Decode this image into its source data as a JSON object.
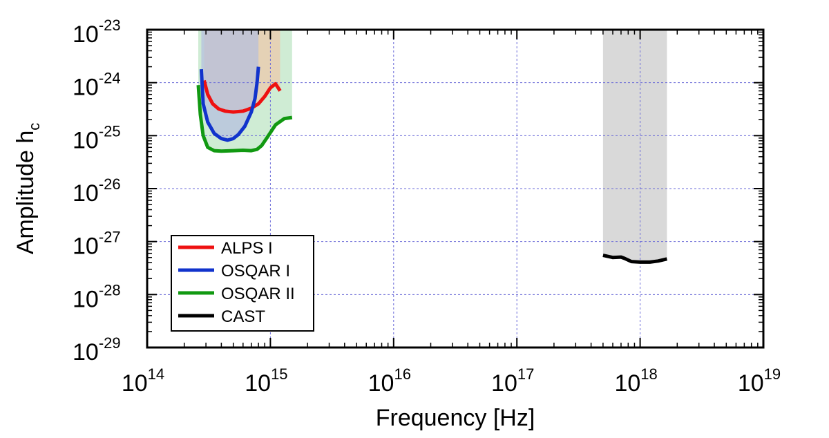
{
  "chart_data": {
    "type": "line",
    "xlabel": "Frequency [Hz]",
    "ylabel_main": "Amplitude h",
    "ylabel_sub": "c",
    "x_scale": "log",
    "y_scale": "log",
    "xlim": [
      100000000000000.0,
      1e+19
    ],
    "ylim": [
      1e-29,
      1e-23
    ],
    "grid": true,
    "legend_position": "bottom-left",
    "x_ticks": [
      {
        "base": "10",
        "exp": "14",
        "value": 100000000000000.0
      },
      {
        "base": "10",
        "exp": "15",
        "value": 1000000000000000.0
      },
      {
        "base": "10",
        "exp": "16",
        "value": 1e+16
      },
      {
        "base": "10",
        "exp": "17",
        "value": 1e+17
      },
      {
        "base": "10",
        "exp": "18",
        "value": 1e+18
      },
      {
        "base": "10",
        "exp": "19",
        "value": 1e+19
      }
    ],
    "y_ticks": [
      {
        "base": "10",
        "exp": "-23",
        "value": 1e-23
      },
      {
        "base": "10",
        "exp": "-24",
        "value": 1e-24
      },
      {
        "base": "10",
        "exp": "-25",
        "value": 1e-25
      },
      {
        "base": "10",
        "exp": "-26",
        "value": 1e-26
      },
      {
        "base": "10",
        "exp": "-27",
        "value": 1e-27
      },
      {
        "base": "10",
        "exp": "-28",
        "value": 1e-28
      },
      {
        "base": "10",
        "exp": "-29",
        "value": 1e-29
      }
    ],
    "series": [
      {
        "name": "ALPS I",
        "color": "#ee1111",
        "x": [
          290000000000000.0,
          310000000000000.0,
          340000000000000.0,
          380000000000000.0,
          430000000000000.0,
          500000000000000.0,
          600000000000000.0,
          700000000000000.0,
          800000000000000.0,
          900000000000000.0,
          1000000000000000.0,
          1100000000000000.0,
          1200000000000000.0
        ],
        "y": [
          1.1e-24,
          6e-25,
          4e-25,
          3.2e-25,
          2.9e-25,
          2.8e-25,
          2.9e-25,
          3.3e-25,
          4e-25,
          5.5e-25,
          8e-25,
          9.5e-25,
          7e-25
        ]
      },
      {
        "name": "OSQAR I",
        "color": "#1133cc",
        "x": [
          275000000000000.0,
          285000000000000.0,
          310000000000000.0,
          350000000000000.0,
          400000000000000.0,
          450000000000000.0,
          500000000000000.0,
          550000000000000.0,
          620000000000000.0,
          700000000000000.0,
          750000000000000.0,
          780000000000000.0,
          800000000000000.0
        ],
        "y": [
          1.8e-24,
          4e-25,
          1.8e-25,
          1.1e-25,
          8.8e-26,
          8.2e-26,
          8.8e-26,
          1.05e-25,
          1.5e-25,
          2.8e-25,
          5e-25,
          1e-24,
          2e-24
        ]
      },
      {
        "name": "OSQAR II",
        "color": "#119911",
        "x": [
          260000000000000.0,
          270000000000000.0,
          285000000000000.0,
          310000000000000.0,
          350000000000000.0,
          400000000000000.0,
          500000000000000.0,
          600000000000000.0,
          700000000000000.0,
          780000000000000.0,
          850000000000000.0,
          950000000000000.0,
          1100000000000000.0,
          1300000000000000.0,
          1500000000000000.0
        ],
        "y": [
          9e-25,
          2.5e-25,
          1e-25,
          6e-26,
          5.2e-26,
          5.1e-26,
          5.2e-26,
          5.3e-26,
          5.2e-26,
          5.5e-26,
          6.5e-26,
          9.5e-26,
          1.6e-25,
          2.1e-25,
          2.2e-25
        ]
      },
      {
        "name": "CAST",
        "color": "#000000",
        "x": [
          5e+17,
          6e+17,
          7e+17,
          7.5e+17,
          8.5e+17,
          1e+18,
          1.2e+18,
          1.4e+18,
          1.65e+18
        ],
        "y": [
          5.5e-28,
          5e-28,
          5.1e-28,
          4.8e-28,
          4.2e-28,
          4.1e-28,
          4.1e-28,
          4.3e-28,
          4.7e-28
        ]
      }
    ],
    "shaded_regions": [
      {
        "series": "OSQAR II",
        "color": "#a8ddb0",
        "opacity": 0.55,
        "x_range": [
          260000000000000.0,
          1500000000000000.0
        ],
        "y_top": 1e-23
      },
      {
        "series": "ALPS I",
        "color": "#f3c2a2",
        "opacity": 0.6,
        "x_range": [
          290000000000000.0,
          1200000000000000.0
        ],
        "y_top": 1e-23
      },
      {
        "series": "OSQAR I",
        "color": "#b3bedf",
        "opacity": 0.7,
        "x_range": [
          275000000000000.0,
          800000000000000.0
        ],
        "y_top": 1e-23
      },
      {
        "series": "CAST",
        "color": "#d9d9d9",
        "opacity": 1.0,
        "x_range": [
          5e+17,
          1.65e+18
        ],
        "y_top": 1e-23
      }
    ]
  }
}
